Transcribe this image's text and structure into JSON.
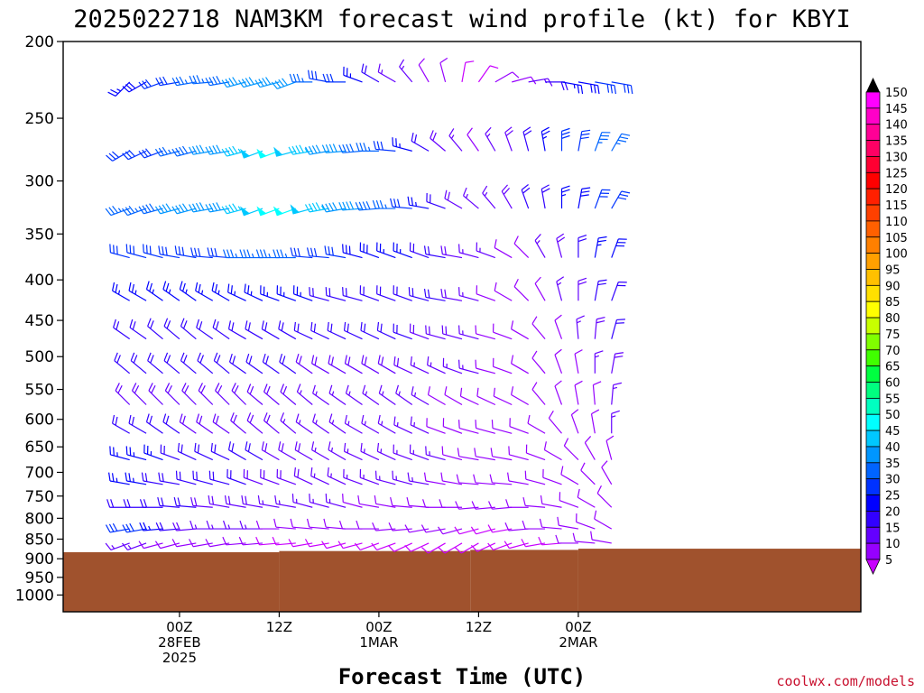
{
  "chart_data": {
    "type": "wind-barb-profile",
    "title": "2025022718 NAM3KM forecast wind profile (kt) for KBYI",
    "xlabel": "Forecast Time (UTC)",
    "credit": "coolwx.com/models",
    "y_ticks": [
      "200",
      "250",
      "300",
      "350",
      "400",
      "450",
      "500",
      "550",
      "600",
      "650",
      "700",
      "750",
      "800",
      "850",
      "900",
      "950",
      "1000"
    ],
    "y_scale": "log-pressure",
    "y_range_hPa": [
      200,
      1050
    ],
    "x_range_hours": [
      -8,
      88
    ],
    "x_ticks": [
      {
        "hour": 6,
        "lines": [
          "00Z",
          "28FEB",
          "2025"
        ]
      },
      {
        "hour": 18,
        "lines": [
          "12Z"
        ]
      },
      {
        "hour": 30,
        "lines": [
          "00Z",
          "1MAR"
        ]
      },
      {
        "hour": 42,
        "lines": [
          "12Z"
        ]
      },
      {
        "hour": 54,
        "lines": [
          "00Z",
          "2MAR"
        ]
      }
    ],
    "colorbar": {
      "labels": [
        "150",
        "145",
        "140",
        "135",
        "130",
        "125",
        "120",
        "115",
        "110",
        "105",
        "100",
        "95",
        "90",
        "85",
        "80",
        "75",
        "70",
        "65",
        "60",
        "55",
        "50",
        "45",
        "40",
        "35",
        "30",
        "25",
        "20",
        "15",
        "10",
        "5"
      ],
      "colors": [
        "#ff00ff",
        "#ff00c8",
        "#ff0096",
        "#ff0064",
        "#ff0032",
        "#ff0000",
        "#ff2000",
        "#ff4000",
        "#ff6000",
        "#ff8000",
        "#ffa000",
        "#ffc000",
        "#ffe000",
        "#ffff00",
        "#c8ff00",
        "#80ff00",
        "#40ff00",
        "#00ff40",
        "#00ff80",
        "#00ffc0",
        "#00ffff",
        "#00c8ff",
        "#0096ff",
        "#0064ff",
        "#0032ff",
        "#0000ff",
        "#3200ff",
        "#6400ff",
        "#9600ff",
        "#c800ff"
      ]
    },
    "terrain": {
      "color": "#a0522d",
      "steps": [
        {
          "from_hour": -8,
          "to_hour": 18,
          "surface_hPa": 883
        },
        {
          "from_hour": 18,
          "to_hour": 41,
          "surface_hPa": 880
        },
        {
          "from_hour": 41,
          "to_hour": 54,
          "surface_hPa": 877
        },
        {
          "from_hour": 54,
          "to_hour": 88,
          "surface_hPa": 874
        }
      ]
    },
    "barb_times_hours": [
      0,
      2,
      4,
      6,
      8,
      10,
      12,
      14,
      16,
      18,
      20,
      22,
      24,
      26,
      28,
      30,
      32,
      34,
      36,
      38,
      40,
      42,
      44,
      46,
      48,
      50,
      52,
      54,
      56,
      58
    ],
    "barb_levels_hPa": [
      225,
      275,
      325,
      375,
      425,
      475,
      525,
      575,
      625,
      675,
      725,
      775,
      825,
      860
    ],
    "series": [
      {
        "level_hPa": 225,
        "dir_deg": [
          225,
          240,
          250,
          260,
          260,
          265,
          260,
          255,
          255,
          255,
          250,
          270,
          280,
          270,
          290,
          300,
          300,
          320,
          330,
          345,
          10,
          35,
          60,
          75,
          80,
          90,
          100,
          100,
          100,
          100
        ],
        "speed_kt": [
          25,
          28,
          30,
          32,
          35,
          35,
          38,
          40,
          42,
          42,
          40,
          35,
          30,
          30,
          25,
          20,
          15,
          15,
          10,
          10,
          8,
          8,
          10,
          12,
          15,
          20,
          25,
          28,
          30,
          30
        ]
      },
      {
        "level_hPa": 275,
        "dir_deg": [
          240,
          245,
          250,
          255,
          255,
          260,
          260,
          255,
          250,
          250,
          255,
          260,
          260,
          265,
          265,
          270,
          275,
          285,
          300,
          310,
          320,
          325,
          330,
          340,
          345,
          350,
          0,
          10,
          20,
          30
        ],
        "speed_kt": [
          30,
          32,
          32,
          35,
          38,
          40,
          42,
          45,
          48,
          50,
          48,
          45,
          42,
          40,
          38,
          35,
          30,
          25,
          20,
          18,
          15,
          12,
          15,
          18,
          20,
          25,
          30,
          32,
          35,
          35
        ]
      },
      {
        "level_hPa": 325,
        "dir_deg": [
          250,
          250,
          255,
          255,
          255,
          260,
          260,
          255,
          250,
          250,
          250,
          255,
          260,
          260,
          265,
          265,
          270,
          275,
          280,
          290,
          300,
          310,
          320,
          330,
          340,
          350,
          0,
          10,
          20,
          30
        ],
        "speed_kt": [
          35,
          35,
          38,
          40,
          40,
          42,
          42,
          45,
          48,
          50,
          50,
          48,
          45,
          42,
          40,
          38,
          35,
          30,
          25,
          20,
          18,
          15,
          15,
          18,
          20,
          22,
          25,
          28,
          30,
          32
        ]
      },
      {
        "level_hPa": 375,
        "dir_deg": [
          285,
          285,
          285,
          280,
          280,
          275,
          275,
          270,
          270,
          270,
          270,
          275,
          275,
          280,
          285,
          290,
          290,
          290,
          290,
          280,
          280,
          285,
          290,
          300,
          315,
          330,
          345,
          0,
          10,
          20
        ],
        "speed_kt": [
          30,
          30,
          30,
          30,
          32,
          32,
          32,
          35,
          35,
          35,
          35,
          32,
          30,
          30,
          28,
          28,
          25,
          25,
          22,
          20,
          18,
          15,
          15,
          12,
          12,
          15,
          18,
          20,
          25,
          28
        ]
      },
      {
        "level_hPa": 425,
        "dir_deg": [
          300,
          300,
          305,
          305,
          305,
          300,
          300,
          295,
          295,
          290,
          290,
          290,
          285,
          285,
          285,
          290,
          290,
          290,
          285,
          280,
          280,
          285,
          290,
          300,
          315,
          330,
          345,
          0,
          10,
          20
        ],
        "speed_kt": [
          25,
          25,
          25,
          25,
          25,
          25,
          25,
          25,
          25,
          25,
          25,
          25,
          22,
          22,
          22,
          22,
          22,
          22,
          20,
          20,
          18,
          15,
          12,
          12,
          12,
          12,
          15,
          18,
          20,
          22
        ]
      },
      {
        "level_hPa": 475,
        "dir_deg": [
          305,
          305,
          310,
          310,
          310,
          305,
          305,
          300,
          300,
          300,
          300,
          295,
          295,
          295,
          295,
          295,
          295,
          290,
          290,
          285,
          285,
          285,
          285,
          290,
          300,
          320,
          340,
          355,
          5,
          15
        ],
        "speed_kt": [
          22,
          22,
          22,
          22,
          22,
          22,
          22,
          22,
          22,
          22,
          22,
          20,
          20,
          20,
          20,
          20,
          20,
          20,
          18,
          18,
          18,
          15,
          12,
          12,
          12,
          12,
          12,
          15,
          18,
          20
        ]
      },
      {
        "level_hPa": 525,
        "dir_deg": [
          310,
          310,
          310,
          310,
          310,
          310,
          310,
          305,
          305,
          305,
          305,
          305,
          300,
          300,
          300,
          300,
          300,
          295,
          295,
          295,
          290,
          285,
          285,
          290,
          300,
          320,
          340,
          350,
          0,
          10
        ],
        "speed_kt": [
          20,
          20,
          20,
          20,
          20,
          20,
          20,
          20,
          20,
          20,
          20,
          18,
          18,
          18,
          18,
          18,
          18,
          18,
          15,
          15,
          15,
          15,
          12,
          12,
          10,
          10,
          10,
          12,
          15,
          18
        ]
      },
      {
        "level_hPa": 575,
        "dir_deg": [
          315,
          315,
          315,
          315,
          315,
          315,
          315,
          315,
          310,
          310,
          310,
          310,
          305,
          305,
          305,
          305,
          305,
          305,
          300,
          300,
          300,
          295,
          295,
          295,
          300,
          320,
          340,
          350,
          355,
          5
        ],
        "speed_kt": [
          18,
          18,
          18,
          18,
          18,
          18,
          18,
          18,
          18,
          18,
          18,
          15,
          15,
          15,
          15,
          15,
          15,
          15,
          15,
          12,
          12,
          12,
          12,
          12,
          10,
          10,
          10,
          10,
          12,
          15
        ]
      },
      {
        "level_hPa": 625,
        "dir_deg": [
          300,
          300,
          305,
          305,
          305,
          305,
          305,
          310,
          310,
          310,
          310,
          305,
          305,
          305,
          300,
          300,
          300,
          295,
          295,
          290,
          290,
          285,
          285,
          285,
          290,
          300,
          320,
          340,
          350,
          0
        ],
        "speed_kt": [
          20,
          20,
          20,
          20,
          18,
          18,
          18,
          18,
          18,
          18,
          15,
          15,
          15,
          15,
          15,
          15,
          15,
          15,
          15,
          12,
          12,
          12,
          12,
          12,
          12,
          10,
          10,
          10,
          12,
          15
        ]
      },
      {
        "level_hPa": 675,
        "dir_deg": [
          285,
          285,
          290,
          290,
          295,
          295,
          295,
          300,
          300,
          300,
          300,
          300,
          300,
          300,
          295,
          295,
          295,
          290,
          290,
          285,
          285,
          280,
          280,
          280,
          285,
          290,
          300,
          315,
          330,
          345
        ],
        "speed_kt": [
          25,
          25,
          25,
          22,
          22,
          22,
          20,
          20,
          20,
          18,
          18,
          18,
          15,
          15,
          15,
          15,
          15,
          15,
          15,
          15,
          12,
          12,
          12,
          12,
          12,
          12,
          10,
          10,
          12,
          12
        ]
      },
      {
        "level_hPa": 725,
        "dir_deg": [
          280,
          280,
          280,
          280,
          285,
          285,
          285,
          290,
          290,
          290,
          290,
          295,
          295,
          295,
          290,
          290,
          285,
          285,
          280,
          280,
          280,
          275,
          275,
          275,
          280,
          285,
          290,
          300,
          315,
          330
        ],
        "speed_kt": [
          25,
          25,
          22,
          22,
          22,
          20,
          20,
          20,
          18,
          18,
          18,
          18,
          15,
          15,
          15,
          15,
          15,
          15,
          15,
          12,
          12,
          12,
          12,
          12,
          12,
          10,
          10,
          10,
          10,
          12
        ]
      },
      {
        "level_hPa": 775,
        "dir_deg": [
          270,
          270,
          270,
          275,
          275,
          275,
          280,
          280,
          280,
          280,
          280,
          285,
          285,
          285,
          285,
          280,
          280,
          275,
          275,
          270,
          270,
          265,
          265,
          265,
          270,
          275,
          280,
          290,
          300,
          315
        ],
        "speed_kt": [
          20,
          20,
          20,
          20,
          20,
          18,
          18,
          18,
          18,
          15,
          15,
          15,
          15,
          15,
          12,
          12,
          12,
          12,
          12,
          12,
          10,
          10,
          10,
          10,
          10,
          10,
          10,
          10,
          10,
          12
        ]
      },
      {
        "level_hPa": 825,
        "dir_deg": [
          260,
          260,
          265,
          265,
          265,
          270,
          270,
          270,
          270,
          270,
          275,
          275,
          275,
          275,
          270,
          270,
          265,
          265,
          260,
          260,
          255,
          255,
          255,
          260,
          265,
          270,
          275,
          280,
          290,
          300
        ],
        "speed_kt": [
          30,
          30,
          25,
          20,
          18,
          15,
          15,
          15,
          15,
          12,
          12,
          12,
          12,
          12,
          10,
          10,
          10,
          10,
          10,
          10,
          10,
          8,
          8,
          8,
          10,
          10,
          10,
          10,
          10,
          10
        ]
      },
      {
        "level_hPa": 860,
        "dir_deg": [
          250,
          250,
          255,
          255,
          260,
          260,
          260,
          265,
          265,
          265,
          265,
          260,
          260,
          255,
          255,
          250,
          250,
          245,
          245,
          240,
          240,
          240,
          245,
          250,
          255,
          260,
          265,
          270,
          275,
          280
        ],
        "speed_kt": [
          15,
          15,
          12,
          12,
          10,
          10,
          10,
          10,
          10,
          8,
          8,
          8,
          8,
          8,
          8,
          8,
          8,
          8,
          8,
          8,
          8,
          8,
          8,
          8,
          8,
          8,
          8,
          10,
          10,
          10
        ]
      }
    ]
  }
}
